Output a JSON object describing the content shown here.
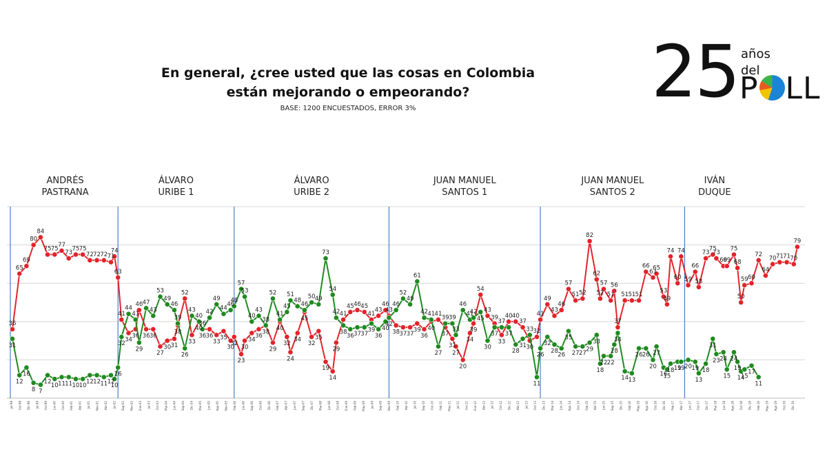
{
  "title_line1": "En general, ¿cree usted que las cosas en Colombia",
  "title_line2": "están mejorando o empeorando?",
  "subtitle": "BASE: 1200 ENCUESTADOS, ERROR 3%",
  "logo": {
    "number": "25",
    "line1": "años",
    "line2": "del",
    "word_start": "P",
    "word_end": "LL"
  },
  "colors": {
    "mejorando": "#1f8a1f",
    "empeorando": "#e2232a",
    "divider": "#4a7fc0",
    "grid": "#d6d6d6"
  },
  "chart_data": {
    "type": "line",
    "ylim": [
      0,
      100
    ],
    "grid": true,
    "periods": [
      {
        "name_lines": [
          "ANDRÉS",
          "PASTRANA"
        ],
        "start": 0,
        "end": 30
      },
      {
        "name_lines": [
          "ÁLVARO",
          "URIBE 1"
        ],
        "start": 30,
        "end": 63
      },
      {
        "name_lines": [
          "ÁLVARO",
          "URIBE 2"
        ],
        "start": 63,
        "end": 107
      },
      {
        "name_lines": [
          "JUAN MANUEL",
          "SANTOS 1"
        ],
        "start": 107,
        "end": 150
      },
      {
        "name_lines": [
          "JUAN MANUEL",
          "SANTOS 2"
        ],
        "start": 150,
        "end": 191
      },
      {
        "name_lines": [
          "IVÁN",
          "DUQUE"
        ],
        "start": 191,
        "end": 208
      }
    ],
    "x_ticks": [
      "Jul-98",
      "Oct-98",
      "Dic-98",
      "Jul-99",
      "Oct-99",
      "Jun-00",
      "Oct-00",
      "Feb-01",
      "Abr-01",
      "Jul-01",
      "Nov-01",
      "Abr-02",
      "Jul-02",
      "Sep-02",
      "Nov-02",
      "Ene-03",
      "Jul-03",
      "Oct-03",
      "Mar-04",
      "Jun-04",
      "Sep-04",
      "Dic-04",
      "Mar-05",
      "Jun-05",
      "Ago-05",
      "Nov-05",
      "Feb-06",
      "Jun-06",
      "Sep-06",
      "Oct-06",
      "Dic-06",
      "Feb-07",
      "Abr-07",
      "Jun-07",
      "Sep-07",
      "Dic-07",
      "Mar-08",
      "Jun-08",
      "Oct-08",
      "Ene-09",
      "Feb-09",
      "May-09",
      "Jul-09",
      "Sep-09",
      "Nov-09",
      "Feb-10",
      "Abr-10",
      "Jul-10",
      "Sep-10",
      "Oct-10",
      "Feb-11",
      "May-11",
      "Jul-11",
      "Oct-11",
      "Ene-12",
      "Abr-12",
      "Jul-12",
      "Oct-12",
      "Dic-12",
      "Abr-13",
      "Jul-13",
      "Oct-13",
      "Dic-13",
      "Mar-14",
      "Jun-14",
      "Ago-14",
      "Oct-14",
      "Feb-15",
      "Abr-15",
      "Jun-15",
      "Sep-15",
      "Dic-15",
      "Feb-16",
      "May-16",
      "Ago-16",
      "Oct-16",
      "Dic-16",
      "Feb-17",
      "Abr-17",
      "Jun-17",
      "Oct-17",
      "Dic-17",
      "Mar-18",
      "Jun-18",
      "Ago-18",
      "Oct-18",
      "Dic-18",
      "Feb-19",
      "May-19",
      "Ago-19",
      "Oct-19",
      "Dic-19"
    ],
    "series": [
      {
        "key": "empeorando",
        "points": [
          [
            0,
            36
          ],
          [
            2,
            65
          ],
          [
            4,
            69
          ],
          [
            6,
            80
          ],
          [
            8,
            84
          ],
          [
            10,
            75
          ],
          [
            12,
            75
          ],
          [
            14,
            77
          ],
          [
            16,
            73
          ],
          [
            18,
            75
          ],
          [
            20,
            75
          ],
          [
            22,
            72
          ],
          [
            24,
            72
          ],
          [
            26,
            72
          ],
          [
            28,
            71
          ],
          [
            29,
            74
          ],
          [
            30,
            63
          ],
          [
            31,
            41
          ],
          [
            33,
            34
          ],
          [
            35,
            36
          ],
          [
            36,
            46
          ],
          [
            38,
            36
          ],
          [
            40,
            36
          ],
          [
            42,
            27
          ],
          [
            44,
            30
          ],
          [
            46,
            31
          ],
          [
            47,
            38
          ],
          [
            49,
            52
          ],
          [
            51,
            33
          ],
          [
            53,
            40
          ],
          [
            54,
            36
          ],
          [
            56,
            36
          ],
          [
            58,
            33
          ],
          [
            60,
            35
          ],
          [
            62,
            30
          ],
          [
            63,
            32
          ],
          [
            65,
            23
          ],
          [
            66,
            30
          ],
          [
            68,
            34
          ],
          [
            70,
            36
          ],
          [
            72,
            38
          ],
          [
            74,
            29
          ],
          [
            76,
            40
          ],
          [
            78,
            32
          ],
          [
            79,
            24
          ],
          [
            81,
            34
          ],
          [
            83,
            45
          ],
          [
            85,
            32
          ],
          [
            87,
            35
          ],
          [
            89,
            19
          ],
          [
            91,
            14
          ],
          [
            92,
            29
          ],
          [
            94,
            41
          ],
          [
            96,
            45
          ],
          [
            98,
            46
          ],
          [
            100,
            45
          ],
          [
            102,
            41
          ],
          [
            104,
            43
          ],
          [
            106,
            46
          ],
          [
            107,
            43
          ],
          [
            109,
            38
          ],
          [
            111,
            37
          ],
          [
            113,
            37
          ],
          [
            115,
            39
          ],
          [
            117,
            36
          ],
          [
            119,
            40
          ],
          [
            121,
            41
          ],
          [
            123,
            37
          ],
          [
            125,
            31
          ],
          [
            126,
            27
          ],
          [
            128,
            20
          ],
          [
            130,
            34
          ],
          [
            131,
            39
          ],
          [
            133,
            54
          ],
          [
            135,
            43
          ],
          [
            137,
            39
          ],
          [
            139,
            33
          ],
          [
            141,
            40
          ],
          [
            143,
            40
          ],
          [
            145,
            37
          ],
          [
            147,
            30
          ],
          [
            149,
            32
          ],
          [
            150,
            41
          ],
          [
            152,
            49
          ],
          [
            154,
            43
          ],
          [
            156,
            46
          ],
          [
            158,
            57
          ],
          [
            160,
            51
          ],
          [
            162,
            52
          ],
          [
            164,
            82
          ],
          [
            166,
            62
          ],
          [
            167,
            52
          ],
          [
            168,
            57
          ],
          [
            170,
            51
          ],
          [
            171,
            56
          ],
          [
            172,
            37
          ],
          [
            174,
            51
          ],
          [
            176,
            51
          ],
          [
            178,
            51
          ],
          [
            180,
            66
          ],
          [
            182,
            63
          ],
          [
            183,
            65
          ],
          [
            185,
            53
          ],
          [
            186,
            49
          ],
          [
            187,
            74
          ],
          [
            189,
            60
          ],
          [
            190,
            74
          ],
          [
            192,
            59
          ],
          [
            194,
            66
          ],
          [
            195,
            58
          ],
          [
            197,
            73
          ],
          [
            199,
            75
          ],
          [
            200,
            73
          ],
          [
            202,
            69
          ],
          [
            203,
            69
          ],
          [
            205,
            75
          ],
          [
            206,
            68
          ],
          [
            207,
            50
          ],
          [
            208,
            59
          ],
          [
            210,
            60
          ],
          [
            212,
            72
          ],
          [
            214,
            64
          ],
          [
            216,
            70
          ],
          [
            218,
            71
          ],
          [
            220,
            71
          ],
          [
            222,
            70
          ],
          [
            223,
            79
          ]
        ]
      },
      {
        "key": "mejorando",
        "points": [
          [
            0,
            31
          ],
          [
            2,
            12
          ],
          [
            4,
            16
          ],
          [
            6,
            8
          ],
          [
            8,
            7
          ],
          [
            10,
            12
          ],
          [
            12,
            10
          ],
          [
            14,
            11
          ],
          [
            16,
            11
          ],
          [
            18,
            10
          ],
          [
            20,
            10
          ],
          [
            22,
            12
          ],
          [
            24,
            12
          ],
          [
            26,
            11
          ],
          [
            28,
            12
          ],
          [
            29,
            10
          ],
          [
            30,
            16
          ],
          [
            31,
            32
          ],
          [
            33,
            44
          ],
          [
            35,
            41
          ],
          [
            36,
            29
          ],
          [
            38,
            47
          ],
          [
            40,
            43
          ],
          [
            42,
            53
          ],
          [
            44,
            49
          ],
          [
            46,
            46
          ],
          [
            47,
            39
          ],
          [
            49,
            26
          ],
          [
            51,
            43
          ],
          [
            53,
            40
          ],
          [
            54,
            36
          ],
          [
            56,
            42
          ],
          [
            58,
            49
          ],
          [
            60,
            44
          ],
          [
            62,
            46
          ],
          [
            63,
            48
          ],
          [
            65,
            57
          ],
          [
            66,
            53
          ],
          [
            68,
            40
          ],
          [
            70,
            43
          ],
          [
            72,
            38
          ],
          [
            74,
            52
          ],
          [
            76,
            41
          ],
          [
            78,
            45
          ],
          [
            79,
            51
          ],
          [
            81,
            48
          ],
          [
            83,
            46
          ],
          [
            85,
            50
          ],
          [
            87,
            49
          ],
          [
            89,
            73
          ],
          [
            91,
            54
          ],
          [
            92,
            42
          ],
          [
            94,
            38
          ],
          [
            96,
            36
          ],
          [
            98,
            37
          ],
          [
            100,
            37
          ],
          [
            102,
            39
          ],
          [
            104,
            36
          ],
          [
            106,
            40
          ],
          [
            107,
            42
          ],
          [
            109,
            46
          ],
          [
            111,
            52
          ],
          [
            113,
            49
          ],
          [
            115,
            61
          ],
          [
            117,
            42
          ],
          [
            119,
            41
          ],
          [
            121,
            27
          ],
          [
            123,
            39
          ],
          [
            125,
            39
          ],
          [
            126,
            33
          ],
          [
            128,
            46
          ],
          [
            130,
            41
          ],
          [
            131,
            42
          ],
          [
            133,
            45
          ],
          [
            135,
            30
          ],
          [
            137,
            37
          ],
          [
            139,
            37
          ],
          [
            141,
            37
          ],
          [
            143,
            28
          ],
          [
            145,
            31
          ],
          [
            147,
            33
          ],
          [
            149,
            11
          ],
          [
            150,
            26
          ],
          [
            152,
            32
          ],
          [
            154,
            28
          ],
          [
            156,
            26
          ],
          [
            158,
            35
          ],
          [
            160,
            27
          ],
          [
            162,
            27
          ],
          [
            164,
            29
          ],
          [
            166,
            33
          ],
          [
            167,
            18
          ],
          [
            168,
            22
          ],
          [
            170,
            22
          ],
          [
            171,
            28
          ],
          [
            172,
            34
          ],
          [
            174,
            14
          ],
          [
            176,
            13
          ],
          [
            178,
            26
          ],
          [
            180,
            26
          ],
          [
            182,
            20
          ],
          [
            183,
            27
          ],
          [
            185,
            16
          ],
          [
            186,
            15
          ],
          [
            187,
            18
          ],
          [
            189,
            19
          ],
          [
            190,
            19
          ],
          [
            192,
            20
          ],
          [
            194,
            19
          ],
          [
            195,
            13
          ],
          [
            197,
            18
          ],
          [
            199,
            31
          ],
          [
            200,
            23
          ],
          [
            202,
            24
          ],
          [
            203,
            15
          ],
          [
            205,
            24
          ],
          [
            206,
            19
          ],
          [
            207,
            14
          ],
          [
            208,
            15
          ],
          [
            210,
            17
          ],
          [
            212,
            11
          ]
        ]
      }
    ]
  }
}
